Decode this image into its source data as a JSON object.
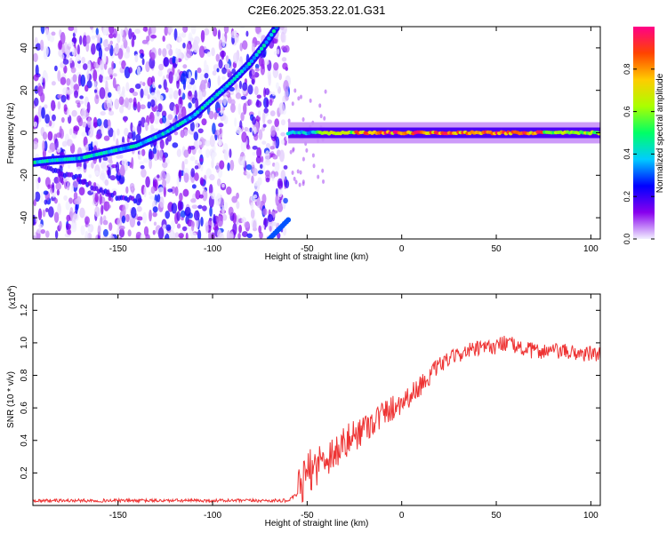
{
  "title": "C2E6.2025.353.22.01.G31",
  "colors": {
    "snr_line": "#ee3333",
    "axis": "#000000",
    "background": "#ffffff"
  },
  "chart_data": [
    {
      "type": "heatmap",
      "name": "spectrogram",
      "xlabel": "Height of straight line (km)",
      "ylabel": "Frequency (Hz)",
      "xlim": [
        -195,
        105
      ],
      "ylim": [
        -50,
        50
      ],
      "xticks": [
        -150,
        -100,
        -50,
        0,
        50,
        100
      ],
      "yticks": [
        -40,
        -20,
        0,
        20,
        40
      ],
      "noise_region_x": [
        -195,
        -60
      ],
      "signal_trace": {
        "x": [
          -195,
          -185,
          -170,
          -155,
          -140,
          -125,
          -110,
          -100,
          -90,
          -80,
          -72,
          -66
        ],
        "y": [
          -14,
          -13,
          -12,
          -9,
          -6,
          0,
          8,
          16,
          24,
          33,
          42,
          50
        ]
      },
      "secondary_trace": {
        "x": [
          -195,
          -185,
          -170,
          -160,
          -150,
          -140
        ],
        "y": [
          -13,
          -17,
          -22,
          -27,
          -30,
          -32
        ]
      },
      "tone_band": {
        "x": [
          -60,
          105
        ],
        "y": 0
      },
      "colorbar": {
        "label": "Normalized spectral amplitude",
        "ticks": [
          0.0,
          0.2,
          0.4,
          0.6,
          0.8
        ],
        "tick_labels": [
          "0.0",
          "0.2",
          "0.4",
          "0.6",
          "0.8"
        ],
        "range": [
          0,
          1
        ],
        "colormap": [
          "#f2f0ff",
          "#8800ee",
          "#0000ff",
          "#00ccff",
          "#00ff66",
          "#aaff00",
          "#ffcc00",
          "#ff4400",
          "#ff0088"
        ]
      }
    },
    {
      "type": "line",
      "name": "snr",
      "xlabel": "Height of straight line (km)",
      "ylabel": "SNR (10 * v/v)",
      "scale_label": "(x10",
      "scale_exponent": "4",
      "scale_suffix": ")",
      "xlim": [
        -195,
        105
      ],
      "ylim": [
        0,
        1.3
      ],
      "xticks": [
        -150,
        -100,
        -50,
        0,
        50,
        100
      ],
      "yticks": [
        0.2,
        0.4,
        0.6,
        0.8,
        1.0,
        1.2
      ],
      "x": [
        -195,
        -150,
        -100,
        -60,
        -55,
        -50,
        -45,
        -40,
        -35,
        -30,
        -25,
        -20,
        -15,
        -10,
        -5,
        0,
        5,
        10,
        15,
        20,
        25,
        30,
        35,
        40,
        45,
        50,
        55,
        60,
        65,
        70,
        80,
        90,
        100,
        105
      ],
      "y": [
        0.03,
        0.03,
        0.03,
        0.03,
        0.07,
        0.2,
        0.25,
        0.3,
        0.33,
        0.38,
        0.43,
        0.48,
        0.52,
        0.56,
        0.6,
        0.64,
        0.68,
        0.74,
        0.8,
        0.86,
        0.9,
        0.93,
        0.95,
        0.96,
        0.97,
        0.98,
        1.0,
        0.98,
        0.96,
        0.95,
        0.95,
        0.94,
        0.93,
        0.93
      ]
    }
  ]
}
